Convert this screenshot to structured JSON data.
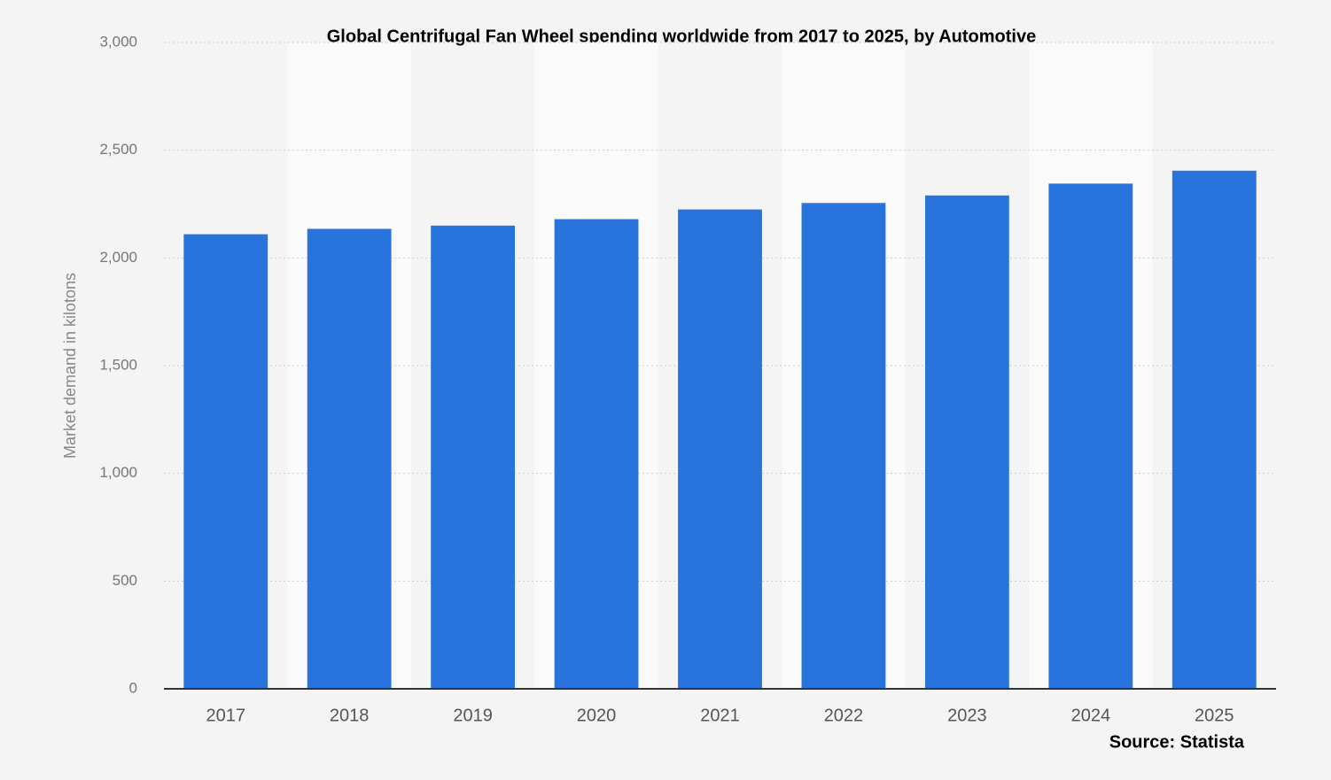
{
  "chart_data": {
    "type": "bar",
    "title": "Global Centrifugal Fan Wheel spending worldwide from 2017 to 2025, by Automotive",
    "y_label": "Market demand in kilotons",
    "source": "Source: Statista",
    "categories": [
      "2017",
      "2018",
      "2019",
      "2020",
      "2021",
      "2022",
      "2023",
      "2024",
      "2025"
    ],
    "values": [
      2110,
      2135,
      2150,
      2180,
      2225,
      2255,
      2290,
      2345,
      2405
    ],
    "color": "#2874dc",
    "ylim": [
      0,
      3000
    ],
    "yticks": [
      0,
      500,
      {
        "value": 1000,
        "label": "1,000"
      },
      {
        "value": 1500,
        "label": "1,500"
      },
      {
        "value": 2000,
        "label": "2,000"
      },
      {
        "value": 2500,
        "label": "2,500"
      },
      {
        "value": 3000,
        "label": "3,000"
      }
    ],
    "grid": true
  }
}
